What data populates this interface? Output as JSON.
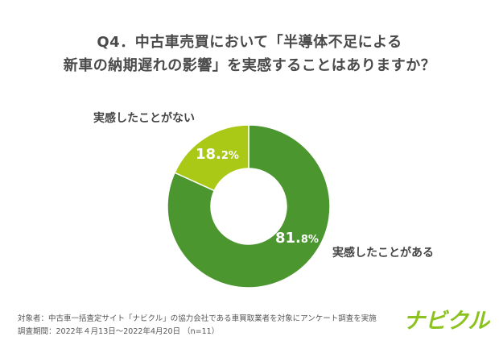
{
  "title": {
    "line1": "Q4．中古車売買において「半導体不足による",
    "line2": "新車の納期遅れの影響」を実感することはありますか？"
  },
  "chart_data": {
    "type": "pie",
    "categories": [
      "実感したことがある",
      "実感したことがない"
    ],
    "values": [
      81.8,
      18.2
    ],
    "value_labels": [
      {
        "big": "81.",
        "small": "8%"
      },
      {
        "big": "18.",
        "small": "2%"
      }
    ],
    "colors": [
      "#4b962f",
      "#a9c916"
    ],
    "title": "",
    "donut": true
  },
  "footer": {
    "line1": "対象者：中古車一括査定サイト「ナビクル」の協力会社である車買取業者を対象にアンケート調査を実施",
    "line2": "調査期間：2022年４月13日〜2022年4月20日 （n=11）"
  },
  "logo": {
    "text": "ナビクル",
    "color": "#8cc21f"
  }
}
